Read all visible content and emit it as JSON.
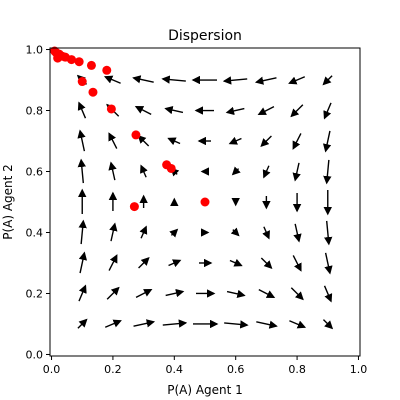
{
  "chart_data": {
    "type": "scatter",
    "title": "Dispersion",
    "xlabel": "P(A) Agent 1",
    "ylabel": "P(A) Agent 2",
    "xlim": [
      -0.005,
      1.005
    ],
    "ylim": [
      -0.005,
      1.005
    ],
    "xticks": [
      0.0,
      0.2,
      0.4,
      0.6,
      0.8,
      1.0
    ],
    "yticks": [
      0.0,
      0.2,
      0.4,
      0.6,
      0.8,
      1.0
    ],
    "xtick_labels": [
      "0.0",
      "0.2",
      "0.4",
      "0.6",
      "0.8",
      "1.0"
    ],
    "ytick_labels": [
      "0.0",
      "0.2",
      "0.4",
      "0.6",
      "0.8",
      "1.0"
    ],
    "grid": false,
    "point_color": "#ff0000",
    "arrow_color": "#000000",
    "trajectory": [
      {
        "x": 0.5,
        "y": 0.5
      },
      {
        "x": 0.27,
        "y": 0.485
      },
      {
        "x": 0.39,
        "y": 0.61
      },
      {
        "x": 0.375,
        "y": 0.622
      },
      {
        "x": 0.275,
        "y": 0.72
      },
      {
        "x": 0.195,
        "y": 0.805
      },
      {
        "x": 0.135,
        "y": 0.86
      },
      {
        "x": 0.1,
        "y": 0.895
      },
      {
        "x": 0.18,
        "y": 0.932
      },
      {
        "x": 0.13,
        "y": 0.948
      },
      {
        "x": 0.09,
        "y": 0.96
      },
      {
        "x": 0.065,
        "y": 0.967
      },
      {
        "x": 0.045,
        "y": 0.975
      },
      {
        "x": 0.035,
        "y": 0.978
      },
      {
        "x": 0.02,
        "y": 0.972
      },
      {
        "x": 0.025,
        "y": 0.985
      },
      {
        "x": 0.015,
        "y": 0.99
      },
      {
        "x": 0.01,
        "y": 0.995
      }
    ],
    "vector_field": {
      "grid_x": [
        0.1,
        0.2,
        0.3,
        0.4,
        0.5,
        0.6,
        0.7,
        0.8,
        0.9
      ],
      "grid_y": [
        0.1,
        0.2,
        0.3,
        0.4,
        0.5,
        0.6,
        0.7,
        0.8,
        0.9
      ],
      "dx_formula": "x*(1-x)*(1-2y)",
      "dy_formula": "y*(1-y)*(1-2x)"
    }
  }
}
